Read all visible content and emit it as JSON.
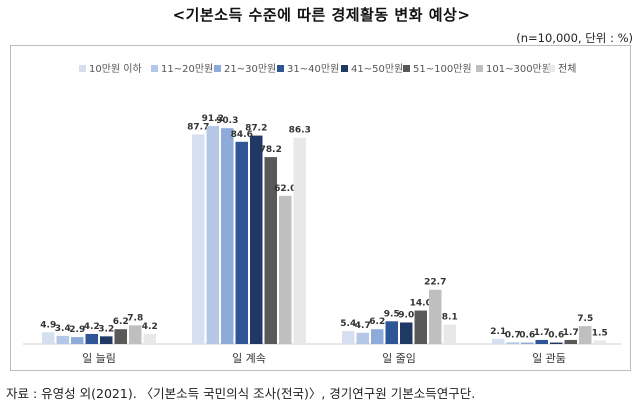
{
  "page": {
    "title": "<기본소득 수준에 따른 경제활동 변화 예상>",
    "unit": "(n=10,000,  단위 : %)",
    "source": "자료 : 유영성 외(2021). 〈기본소득 국민의식 조사(전국)〉, 경기연구원 기본소득연구단."
  },
  "chart_data": {
    "type": "bar",
    "categories": [
      "일 늘림",
      "일 계속",
      "일 줄임",
      "일 관둠"
    ],
    "series": [
      {
        "name": "10만원 이하",
        "color": "#d6dff0",
        "values": [
          4.9,
          87.7,
          5.4,
          2.1
        ]
      },
      {
        "name": "11~20만원",
        "color": "#b4c7e7",
        "values": [
          3.4,
          91.2,
          4.7,
          0.7
        ]
      },
      {
        "name": "21~30만원",
        "color": "#8eaadb",
        "values": [
          2.9,
          90.3,
          6.2,
          0.6
        ]
      },
      {
        "name": "31~40만원",
        "color": "#2f5597",
        "values": [
          4.2,
          84.6,
          9.5,
          1.7
        ]
      },
      {
        "name": "41~50만원",
        "color": "#1f3864",
        "values": [
          3.2,
          87.2,
          9.0,
          0.6
        ]
      },
      {
        "name": "51~100만원",
        "color": "#595959",
        "values": [
          6.2,
          78.2,
          14.0,
          1.7
        ]
      },
      {
        "name": "101~300만원",
        "color": "#bfbfbf",
        "values": [
          7.8,
          62.0,
          22.7,
          7.5
        ]
      },
      {
        "name": "전체",
        "color": "#e8e8e8",
        "values": [
          4.2,
          86.3,
          8.1,
          1.5
        ]
      }
    ],
    "ylim": [
      0,
      100
    ],
    "legend_position": "top",
    "grid": false
  }
}
